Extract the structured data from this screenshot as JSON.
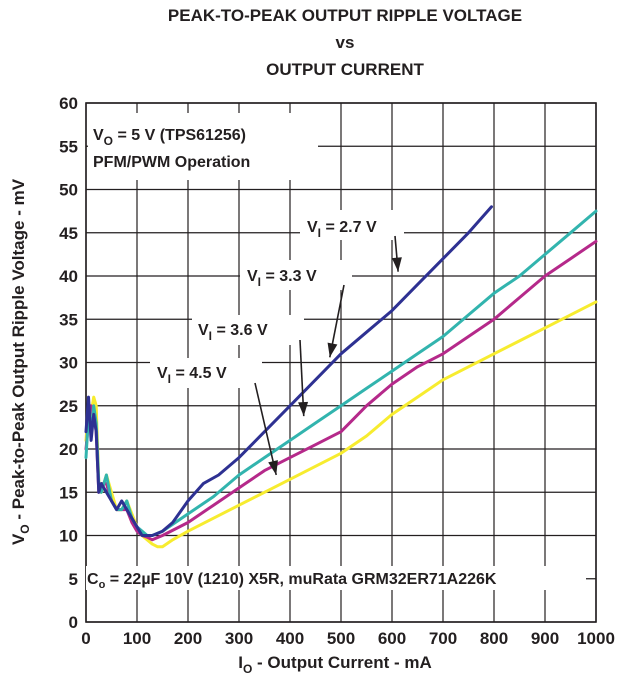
{
  "chart_data": {
    "type": "line",
    "title_lines": [
      "PEAK-TO-PEAK OUTPUT RIPPLE VOLTAGE",
      "vs",
      "OUTPUT CURRENT"
    ],
    "xlabel": {
      "main": "I",
      "sub": "O",
      "rest": " - Output Current - mA"
    },
    "ylabel": {
      "main": "V",
      "sub": "O",
      "rest": " - Peak-to-Peak Output Ripple Voltage - mV"
    },
    "xlim": [
      0,
      1000
    ],
    "ylim": [
      0,
      60
    ],
    "xticks": [
      "0",
      "100",
      "200",
      "300",
      "400",
      "500",
      "600",
      "700",
      "800",
      "900",
      "1000"
    ],
    "yticks": [
      "0",
      "5",
      "10",
      "15",
      "20",
      "25",
      "30",
      "35",
      "40",
      "45",
      "50",
      "55",
      "60"
    ],
    "grid": true,
    "annotations": {
      "condition": {
        "line1_main": "V",
        "line1_sub": "O",
        "line1_rest": " = 5 V (TPS61256)",
        "line2": "PFM/PWM Operation"
      },
      "footnote": {
        "main": "C",
        "sub": "o",
        "rest": " = 22µF 10V (1210) X5R, muRata GRM32ER71A226K"
      }
    },
    "series": [
      {
        "label_main": "V",
        "label_sub": "I",
        "label_rest": " = 2.7 V",
        "color": "#2e3192",
        "x": [
          0,
          5,
          10,
          15,
          20,
          25,
          30,
          40,
          50,
          60,
          70,
          80,
          90,
          100,
          110,
          120,
          130,
          150,
          170,
          200,
          230,
          260,
          300,
          350,
          400,
          450,
          500,
          550,
          600,
          650,
          700,
          750,
          795
        ],
        "y": [
          22,
          26,
          21,
          24,
          22,
          15,
          16,
          15,
          14,
          13,
          14,
          13,
          12,
          11,
          10,
          10,
          10,
          10.5,
          11.5,
          14,
          16,
          17,
          19,
          22,
          25,
          28,
          31,
          33.5,
          36,
          39,
          42,
          45,
          48
        ]
      },
      {
        "label_main": "V",
        "label_sub": "I",
        "label_rest": " = 3.3 V",
        "color": "#32b4ae",
        "x": [
          0,
          5,
          10,
          15,
          20,
          25,
          30,
          40,
          50,
          60,
          70,
          80,
          90,
          100,
          110,
          120,
          130,
          150,
          200,
          250,
          300,
          350,
          400,
          450,
          500,
          550,
          600,
          650,
          700,
          750,
          800,
          850,
          900,
          950,
          1000
        ],
        "y": [
          19,
          24,
          22,
          25,
          23,
          16,
          15,
          17,
          14,
          13,
          13,
          14,
          12,
          11,
          10.5,
          10,
          10,
          10.5,
          12.5,
          14.5,
          17,
          19,
          21,
          23,
          25,
          27,
          29,
          31,
          33,
          35.5,
          38,
          40,
          42.5,
          45,
          47.5
        ]
      },
      {
        "label_main": "V",
        "label_sub": "I",
        "label_rest": " = 3.6 V",
        "color": "#b5298a",
        "x": [
          0,
          5,
          10,
          15,
          20,
          25,
          30,
          40,
          50,
          60,
          70,
          80,
          90,
          100,
          110,
          120,
          130,
          150,
          200,
          250,
          300,
          350,
          400,
          450,
          500,
          550,
          600,
          650,
          700,
          750,
          800,
          850,
          900,
          950,
          1000
        ],
        "y": [
          20,
          23,
          25,
          24,
          22,
          15,
          16,
          16,
          14,
          13,
          13,
          13,
          11.5,
          10.5,
          10,
          9.8,
          9.5,
          10,
          11.5,
          13.5,
          15.5,
          17.5,
          19,
          20.5,
          22,
          25,
          27.5,
          29.5,
          31,
          33,
          35,
          37.5,
          40,
          42,
          44
        ]
      },
      {
        "label_main": "V",
        "label_sub": "I",
        "label_rest": " = 4.5 V",
        "color": "#f7ec2f",
        "x": [
          0,
          5,
          10,
          15,
          20,
          25,
          30,
          40,
          50,
          60,
          70,
          80,
          90,
          100,
          110,
          120,
          130,
          140,
          150,
          170,
          200,
          250,
          300,
          350,
          400,
          450,
          500,
          550,
          600,
          650,
          700,
          750,
          800,
          850,
          900,
          950,
          1000
        ],
        "y": [
          21,
          25,
          24,
          26,
          25,
          16,
          15,
          17,
          15,
          13,
          13,
          14,
          12.5,
          11,
          10,
          9.5,
          9,
          8.7,
          8.7,
          9.5,
          10.5,
          12,
          13.5,
          15,
          16.5,
          18,
          19.5,
          21.5,
          24,
          26,
          28,
          29.5,
          31,
          32.5,
          34,
          35.5,
          37
        ]
      }
    ]
  }
}
